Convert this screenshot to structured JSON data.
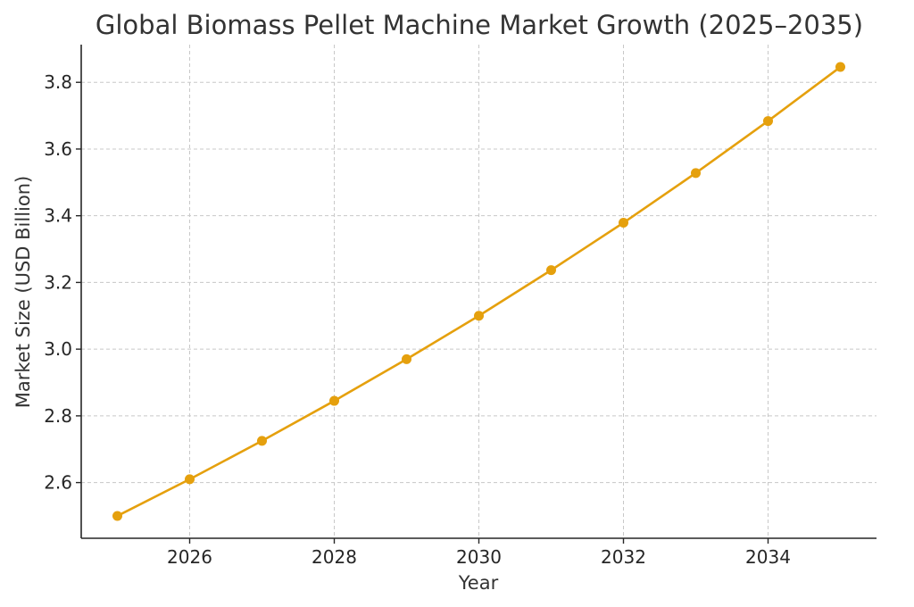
{
  "chart_data": {
    "type": "line",
    "title": "Global Biomass Pellet Machine Market Growth (2025–2035)",
    "xlabel": "Year",
    "ylabel": "Market Size (USD Billion)",
    "x": [
      2025,
      2026,
      2027,
      2028,
      2029,
      2030,
      2031,
      2032,
      2033,
      2034,
      2035
    ],
    "series": [
      {
        "values": [
          2.5,
          2.61,
          2.725,
          2.845,
          2.97,
          3.1,
          3.237,
          3.379,
          3.528,
          3.684,
          3.846
        ]
      }
    ],
    "xlim": [
      2024.5,
      2035.5
    ],
    "ylim": [
      2.433,
      3.913
    ],
    "xticks": [
      "2026",
      "2028",
      "2030",
      "2032",
      "2034"
    ],
    "yticks": [
      "2.6",
      "2.8",
      "3.0",
      "3.2",
      "3.4",
      "3.6",
      "3.8"
    ],
    "grid": true,
    "line_color": "#e5a00d",
    "marker": "circle"
  }
}
